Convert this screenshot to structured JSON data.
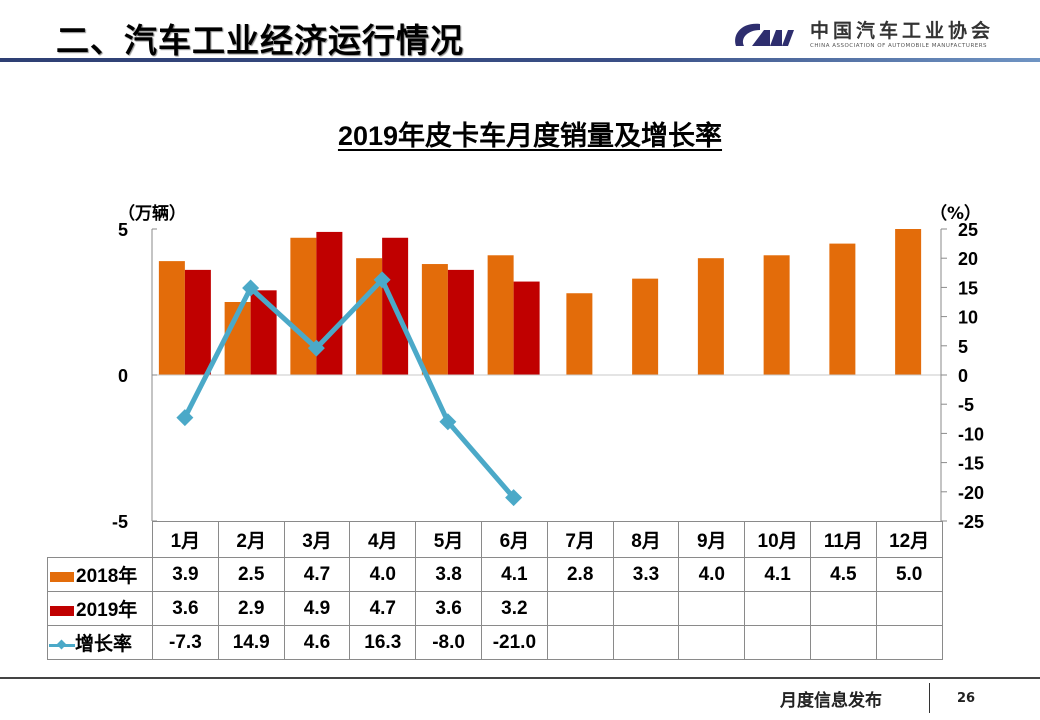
{
  "header": {
    "title": "二、汽车工业经济运行情况",
    "logo_mark": "CAM",
    "logo_cn": "中国汽车工业协会",
    "logo_en": "CHINA ASSOCIATION OF AUTOMOBILE MANUFACTURERS"
  },
  "footer": {
    "text": "月度信息发布",
    "page_number": "26"
  },
  "colors": {
    "series_2018": "#e36c0a",
    "series_2019": "#c00000",
    "growth_line": "#4ba9c8",
    "header_rule": "#2e3f73"
  },
  "chart_data": {
    "type": "bar",
    "title": "2019年皮卡车月度销量及增长率",
    "ylabel_left": "（万辆）",
    "ylabel_right": "（%）",
    "categories": [
      "1月",
      "2月",
      "3月",
      "4月",
      "5月",
      "6月",
      "7月",
      "8月",
      "9月",
      "10月",
      "11月",
      "12月"
    ],
    "ylim_left": [
      -5,
      5
    ],
    "yticks_left": [
      "5",
      "0",
      "-5"
    ],
    "ylim_right": [
      -25,
      25
    ],
    "yticks_right": [
      "25",
      "20",
      "15",
      "10",
      "5",
      "0",
      "-5",
      "-10",
      "-15",
      "-20",
      "-25"
    ],
    "grid": false,
    "legend": "table-bottom",
    "series": [
      {
        "name": "2018年",
        "type": "bar",
        "axis": "left",
        "values": [
          3.9,
          2.5,
          4.7,
          4.0,
          3.8,
          4.1,
          2.8,
          3.3,
          4.0,
          4.1,
          4.5,
          5.0
        ],
        "labels": [
          "3.9",
          "2.5",
          "4.7",
          "4.0",
          "3.8",
          "4.1",
          "2.8",
          "3.3",
          "4.0",
          "4.1",
          "4.5",
          "5.0"
        ]
      },
      {
        "name": "2019年",
        "type": "bar",
        "axis": "left",
        "values": [
          3.6,
          2.9,
          4.9,
          4.7,
          3.6,
          3.2,
          null,
          null,
          null,
          null,
          null,
          null
        ],
        "labels": [
          "3.6",
          "2.9",
          "4.9",
          "4.7",
          "3.6",
          "3.2",
          "",
          "",
          "",
          "",
          "",
          ""
        ]
      },
      {
        "name": "增长率",
        "type": "line",
        "axis": "right",
        "values": [
          -7.3,
          14.9,
          4.6,
          16.3,
          -8.0,
          -21.0,
          null,
          null,
          null,
          null,
          null,
          null
        ],
        "labels": [
          "-7.3",
          "14.9",
          "4.6",
          "16.3",
          "-8.0",
          "-21.0",
          "",
          "",
          "",
          "",
          "",
          ""
        ]
      }
    ]
  }
}
